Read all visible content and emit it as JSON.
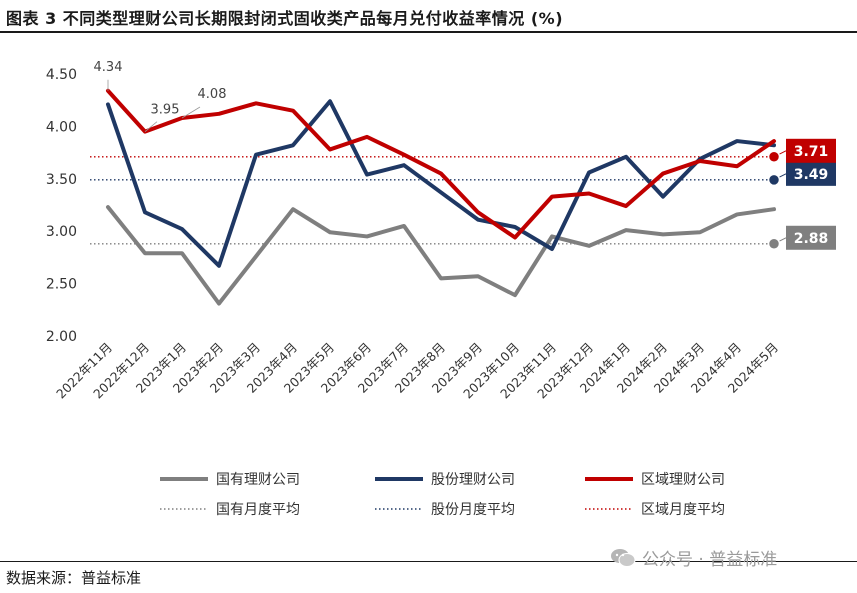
{
  "title": "图表 3 不同类型理财公司长期限封闭式固收类产品每月兑付收益率情况 (%)",
  "source": "数据来源：普益标准",
  "watermark": "公众号 · 普益标准",
  "chart_data": {
    "type": "line",
    "categories": [
      "2022年11月",
      "2022年12月",
      "2023年1月",
      "2023年2月",
      "2023年3月",
      "2023年4月",
      "2023年5月",
      "2023年6月",
      "2023年7月",
      "2023年8月",
      "2023年9月",
      "2023年10月",
      "2023年11月",
      "2023年12月",
      "2024年1月",
      "2024年2月",
      "2024年3月",
      "2024年4月",
      "2024年5月"
    ],
    "y_ticks": [
      "4.50",
      "4.00",
      "3.50",
      "3.00",
      "2.50",
      "2.00"
    ],
    "ylim": [
      2.0,
      4.5
    ],
    "grid": false,
    "legend_position": "bottom",
    "series": [
      {
        "name": "国有理财公司",
        "color": "#7f7f7f",
        "values": [
          3.23,
          2.79,
          2.79,
          2.31,
          2.76,
          3.21,
          2.99,
          2.95,
          3.05,
          2.55,
          2.57,
          2.39,
          2.95,
          2.86,
          3.01,
          2.97,
          2.99,
          3.16,
          3.21
        ]
      },
      {
        "name": "股份理财公司",
        "color": "#1f3864",
        "values": [
          4.21,
          3.18,
          3.02,
          2.67,
          3.73,
          3.82,
          4.24,
          3.54,
          3.63,
          3.37,
          3.11,
          3.04,
          2.83,
          3.56,
          3.71,
          3.33,
          3.69,
          3.86,
          3.82
        ]
      },
      {
        "name": "区域理财公司",
        "color": "#c00000",
        "values": [
          4.34,
          3.95,
          4.08,
          4.12,
          4.22,
          4.15,
          3.78,
          3.9,
          3.73,
          3.55,
          3.18,
          2.94,
          3.33,
          3.36,
          3.24,
          3.55,
          3.67,
          3.62,
          3.86
        ]
      }
    ],
    "averages": [
      {
        "name": "国有月度平均",
        "value": 2.88,
        "label": "2.88",
        "color": "#7f7f7f"
      },
      {
        "name": "股份月度平均",
        "value": 3.49,
        "label": "3.49",
        "color": "#1f3864"
      },
      {
        "name": "区域月度平均",
        "value": 3.71,
        "label": "3.71",
        "color": "#c00000"
      }
    ],
    "annotations": [
      {
        "series": "区域理财公司",
        "index": 0,
        "text": "4.34"
      },
      {
        "series": "区域理财公司",
        "index": 1,
        "text": "3.95"
      },
      {
        "series": "区域理财公司",
        "index": 2,
        "text": "4.08"
      }
    ]
  }
}
